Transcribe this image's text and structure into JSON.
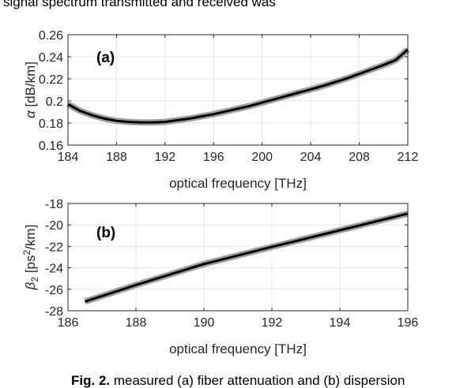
{
  "top_text": "signal spectrum transmitted and received was",
  "caption": {
    "prefix": "Fig. 2.",
    "text": "measured (a) fiber attenuation and (b) dispersion"
  },
  "chart_data": [
    {
      "type": "line",
      "panel_label": "(a)",
      "xlabel": "optical frequency [THz]",
      "ylabel": "α [dB/km]",
      "xlim": [
        184,
        212
      ],
      "ylim": [
        0.16,
        0.26
      ],
      "xticks": [
        184,
        188,
        192,
        196,
        200,
        204,
        208,
        212
      ],
      "yticks": [
        0.16,
        0.18,
        0.2,
        0.22,
        0.24,
        0.26
      ],
      "ytick_labels": [
        "0.16",
        "0.18",
        "0.2",
        "0.22",
        "0.24",
        "0.26"
      ],
      "grid": true,
      "series": [
        {
          "color": "#000000",
          "band_color": "#a0a0a0",
          "x": [
            184,
            185,
            186,
            187,
            188,
            189,
            190,
            191,
            192,
            193,
            194,
            195,
            196,
            197,
            198,
            199,
            200,
            201,
            202,
            203,
            204,
            205,
            206,
            207,
            208,
            209,
            210,
            211,
            212
          ],
          "y": [
            0.197,
            0.191,
            0.187,
            0.184,
            0.182,
            0.181,
            0.1805,
            0.1805,
            0.181,
            0.1825,
            0.184,
            0.186,
            0.188,
            0.1905,
            0.193,
            0.1955,
            0.1985,
            0.2015,
            0.2045,
            0.2075,
            0.2105,
            0.2135,
            0.217,
            0.2205,
            0.2245,
            0.2285,
            0.2325,
            0.237,
            0.2465
          ]
        }
      ]
    },
    {
      "type": "line",
      "panel_label": "(b)",
      "xlabel": "optical frequency [THz]",
      "ylabel": "β2 [ps2/km]",
      "xlim": [
        186,
        196
      ],
      "ylim": [
        -28,
        -18
      ],
      "xticks": [
        186,
        188,
        190,
        192,
        194,
        196
      ],
      "yticks": [
        -28,
        -26,
        -24,
        -22,
        -20,
        -18
      ],
      "grid": true,
      "series": [
        {
          "color": "#000000",
          "band_color": "#a0a0a0",
          "x": [
            186.5,
            188,
            190,
            192,
            194,
            196
          ],
          "y": [
            -27.15,
            -25.6,
            -23.65,
            -22.05,
            -20.5,
            -18.95
          ]
        }
      ]
    }
  ]
}
